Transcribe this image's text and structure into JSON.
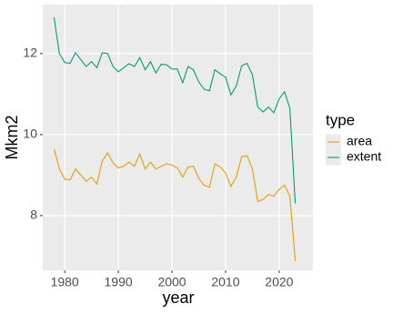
{
  "chart_data": {
    "type": "line",
    "x_label": "year",
    "y_label": "Mkm2",
    "legend_title": "type",
    "legend_position": "right",
    "grid": true,
    "x": [
      1978,
      1979,
      1980,
      1981,
      1982,
      1983,
      1984,
      1985,
      1986,
      1987,
      1988,
      1989,
      1990,
      1991,
      1992,
      1993,
      1994,
      1995,
      1996,
      1997,
      1998,
      1999,
      2000,
      2001,
      2002,
      2003,
      2004,
      2005,
      2006,
      2007,
      2008,
      2009,
      2010,
      2011,
      2012,
      2013,
      2014,
      2015,
      2016,
      2017,
      2018,
      2019,
      2020,
      2021,
      2022,
      2023
    ],
    "series": [
      {
        "name": "area",
        "color": "#E69F00",
        "values": [
          9.65,
          9.15,
          8.9,
          8.88,
          9.15,
          9.0,
          8.85,
          8.95,
          8.78,
          9.35,
          9.55,
          9.3,
          9.18,
          9.22,
          9.32,
          9.22,
          9.52,
          9.15,
          9.32,
          9.15,
          9.22,
          9.28,
          9.25,
          9.18,
          8.95,
          9.2,
          9.22,
          8.92,
          8.75,
          8.7,
          9.28,
          9.2,
          9.05,
          8.72,
          8.95,
          9.45,
          9.48,
          9.15,
          8.35,
          8.4,
          8.52,
          8.48,
          8.65,
          8.75,
          8.48,
          6.88
        ]
      },
      {
        "name": "extent",
        "color": "#009E73",
        "values": [
          12.9,
          12.0,
          11.78,
          11.76,
          12.02,
          11.85,
          11.68,
          11.8,
          11.65,
          12.02,
          12.0,
          11.68,
          11.55,
          11.65,
          11.75,
          11.68,
          11.9,
          11.6,
          11.8,
          11.52,
          11.74,
          11.72,
          11.62,
          11.62,
          11.28,
          11.68,
          11.6,
          11.3,
          11.12,
          11.08,
          11.6,
          11.5,
          11.42,
          10.98,
          11.2,
          11.7,
          11.76,
          11.48,
          10.68,
          10.56,
          10.68,
          10.54,
          10.88,
          11.06,
          10.64,
          8.3
        ]
      }
    ],
    "xlim": [
      1975.9,
      2026.3
    ],
    "xticks": [
      1980,
      1990,
      2000,
      2010,
      2020
    ],
    "ylim": [
      6.65,
      13.21
    ],
    "yticks": [
      8,
      10,
      12
    ]
  }
}
